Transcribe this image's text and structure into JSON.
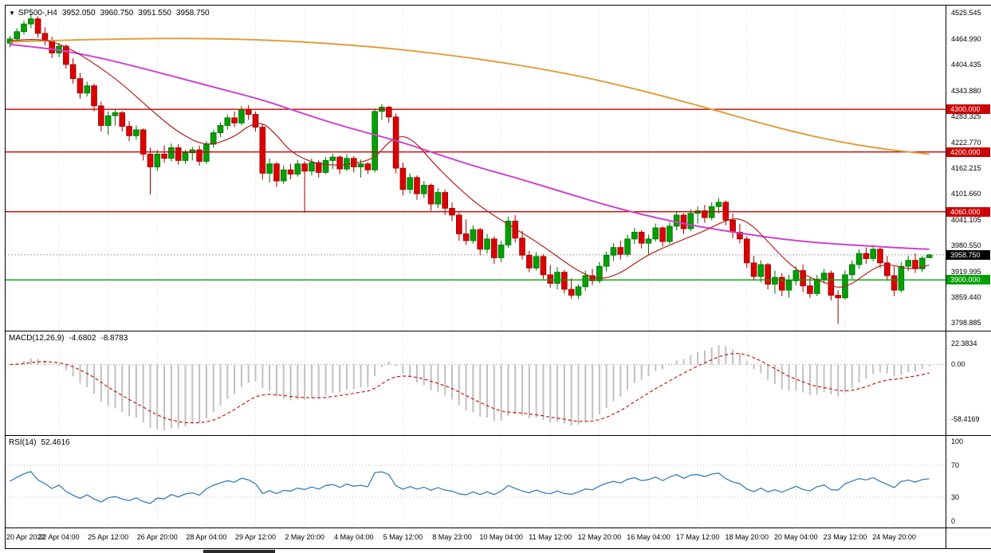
{
  "chart_header": {
    "dropdown_icon": "▼",
    "symbol": "SP500-,H4",
    "open": "3952.050",
    "high": "3960.750",
    "low": "3951.550",
    "close": "3958.750"
  },
  "chart_data": {
    "type": "candlestick",
    "title": "SP500-,H4",
    "symbol": "SP500-",
    "timeframe": "H4",
    "last_ohlc": {
      "open": 3952.05,
      "high": 3960.75,
      "low": 3951.55,
      "close": 3958.75
    },
    "price_axis": {
      "ylim": [
        3781,
        4545
      ],
      "tick_labels": [
        "4525.545",
        "4464.990",
        "4404.435",
        "4343.880",
        "4283.325",
        "4222.770",
        "4162.215",
        "4101.660",
        "4041.105",
        "3980.550",
        "3919.995",
        "3859.440",
        "3798.885"
      ]
    },
    "x_ticks": {
      "indices": [
        0,
        7,
        14,
        21,
        28,
        35,
        42,
        49,
        56,
        63,
        70,
        77,
        84,
        91,
        98,
        105,
        112,
        119,
        126
      ],
      "labels": [
        "20 Apr 2022",
        "22 Apr 04:00",
        "25 Apr 12:00",
        "26 Apr 20:00",
        "28 Apr 04:00",
        "29 Apr 12:00",
        "2 May 20:00",
        "4 May 04:00",
        "5 May 12:00",
        "8 May 23:00",
        "10 May 04:00",
        "11 May 12:00",
        "12 May 20:00",
        "16 May 04:00",
        "17 May 12:00",
        "18 May 20:00",
        "20 May 04:00",
        "23 May 12:00",
        "24 May 20:00"
      ]
    },
    "ohlc": [
      [
        4455,
        4472,
        4445,
        4465
      ],
      [
        4465,
        4490,
        4458,
        4482
      ],
      [
        4482,
        4508,
        4475,
        4500
      ],
      [
        4500,
        4525,
        4490,
        4512
      ],
      [
        4512,
        4518,
        4468,
        4478
      ],
      [
        4478,
        4492,
        4450,
        4460
      ],
      [
        4460,
        4470,
        4420,
        4432
      ],
      [
        4432,
        4455,
        4422,
        4448
      ],
      [
        4448,
        4452,
        4395,
        4405
      ],
      [
        4405,
        4420,
        4360,
        4372
      ],
      [
        4372,
        4385,
        4325,
        4338
      ],
      [
        4338,
        4365,
        4330,
        4355
      ],
      [
        4355,
        4360,
        4295,
        4308
      ],
      [
        4308,
        4318,
        4248,
        4262
      ],
      [
        4262,
        4295,
        4240,
        4285
      ],
      [
        4285,
        4300,
        4262,
        4292
      ],
      [
        4292,
        4296,
        4248,
        4260
      ],
      [
        4260,
        4272,
        4225,
        4238
      ],
      [
        4238,
        4262,
        4228,
        4252
      ],
      [
        4252,
        4255,
        4180,
        4195
      ],
      [
        4195,
        4210,
        4100,
        4165
      ],
      [
        4165,
        4205,
        4155,
        4195
      ],
      [
        4195,
        4215,
        4175,
        4185
      ],
      [
        4185,
        4220,
        4178,
        4210
      ],
      [
        4210,
        4218,
        4170,
        4180
      ],
      [
        4180,
        4205,
        4172,
        4198
      ],
      [
        4198,
        4212,
        4180,
        4205
      ],
      [
        4205,
        4215,
        4168,
        4178
      ],
      [
        4178,
        4225,
        4172,
        4218
      ],
      [
        4218,
        4252,
        4210,
        4245
      ],
      [
        4245,
        4270,
        4235,
        4262
      ],
      [
        4262,
        4288,
        4252,
        4280
      ],
      [
        4280,
        4295,
        4258,
        4268
      ],
      [
        4268,
        4308,
        4262,
        4300
      ],
      [
        4300,
        4310,
        4275,
        4288
      ],
      [
        4288,
        4295,
        4248,
        4258
      ],
      [
        4258,
        4265,
        4135,
        4150
      ],
      [
        4150,
        4185,
        4128,
        4172
      ],
      [
        4172,
        4176,
        4118,
        4132
      ],
      [
        4132,
        4168,
        4125,
        4158
      ],
      [
        4158,
        4172,
        4136,
        4148
      ],
      [
        4148,
        4182,
        4142,
        4172
      ],
      [
        4172,
        4178,
        4058,
        4155
      ],
      [
        4155,
        4185,
        4145,
        4175
      ],
      [
        4175,
        4180,
        4140,
        4152
      ],
      [
        4152,
        4188,
        4148,
        4180
      ],
      [
        4180,
        4196,
        4160,
        4188
      ],
      [
        4188,
        4192,
        4148,
        4160
      ],
      [
        4160,
        4195,
        4155,
        4185
      ],
      [
        4185,
        4190,
        4152,
        4165
      ],
      [
        4165,
        4182,
        4140,
        4172
      ],
      [
        4172,
        4176,
        4148,
        4158
      ],
      [
        4158,
        4302,
        4152,
        4295
      ],
      [
        4295,
        4312,
        4275,
        4305
      ],
      [
        4305,
        4308,
        4268,
        4282
      ],
      [
        4282,
        4290,
        4150,
        4162
      ],
      [
        4162,
        4175,
        4098,
        4112
      ],
      [
        4112,
        4150,
        4102,
        4140
      ],
      [
        4140,
        4145,
        4088,
        4102
      ],
      [
        4102,
        4132,
        4092,
        4122
      ],
      [
        4122,
        4126,
        4062,
        4078
      ],
      [
        4078,
        4115,
        4068,
        4105
      ],
      [
        4105,
        4112,
        4052,
        4068
      ],
      [
        4068,
        4082,
        4038,
        4052
      ],
      [
        4052,
        4058,
        3992,
        4008
      ],
      [
        4008,
        4042,
        3982,
        3992
      ],
      [
        3992,
        4028,
        3985,
        4018
      ],
      [
        4018,
        4022,
        3958,
        3972
      ],
      [
        3972,
        4008,
        3962,
        3996
      ],
      [
        3996,
        4002,
        3938,
        3952
      ],
      [
        3952,
        3992,
        3942,
        3982
      ],
      [
        3982,
        4048,
        3975,
        4038
      ],
      [
        4038,
        4052,
        3988,
        3998
      ],
      [
        3998,
        4015,
        3948,
        3958
      ],
      [
        3958,
        3968,
        3918,
        3928
      ],
      [
        3928,
        3965,
        3922,
        3955
      ],
      [
        3955,
        3960,
        3902,
        3912
      ],
      [
        3912,
        3935,
        3882,
        3892
      ],
      [
        3892,
        3930,
        3878,
        3918
      ],
      [
        3918,
        3924,
        3868,
        3878
      ],
      [
        3878,
        3904,
        3856,
        3864
      ],
      [
        3864,
        3890,
        3855,
        3884
      ],
      [
        3884,
        3922,
        3874,
        3910
      ],
      [
        3910,
        3926,
        3888,
        3898
      ],
      [
        3898,
        3942,
        3892,
        3932
      ],
      [
        3932,
        3966,
        3920,
        3958
      ],
      [
        3958,
        3986,
        3944,
        3976
      ],
      [
        3976,
        3992,
        3948,
        3960
      ],
      [
        3960,
        4006,
        3954,
        3996
      ],
      [
        3996,
        4022,
        3984,
        4012
      ],
      [
        4012,
        4016,
        3974,
        3986
      ],
      [
        3986,
        4006,
        3958,
        3996
      ],
      [
        3996,
        4032,
        3990,
        4022
      ],
      [
        4022,
        4026,
        3978,
        3990
      ],
      [
        3990,
        4036,
        3984,
        4026
      ],
      [
        4026,
        4062,
        4016,
        4052
      ],
      [
        4052,
        4056,
        4008,
        4020
      ],
      [
        4020,
        4066,
        4014,
        4056
      ],
      [
        4056,
        4072,
        4032,
        4062
      ],
      [
        4062,
        4076,
        4034,
        4046
      ],
      [
        4046,
        4082,
        4040,
        4072
      ],
      [
        4072,
        4092,
        4056,
        4082
      ],
      [
        4082,
        4086,
        4028,
        4040
      ],
      [
        4040,
        4056,
        3998,
        4012
      ],
      [
        4012,
        4032,
        3986,
        3996
      ],
      [
        3996,
        4002,
        3928,
        3940
      ],
      [
        3940,
        3956,
        3898,
        3908
      ],
      [
        3908,
        3946,
        3894,
        3936
      ],
      [
        3936,
        3940,
        3878,
        3890
      ],
      [
        3890,
        3922,
        3868,
        3906
      ],
      [
        3906,
        3916,
        3862,
        3876
      ],
      [
        3876,
        3912,
        3858,
        3898
      ],
      [
        3898,
        3932,
        3888,
        3922
      ],
      [
        3922,
        3936,
        3872,
        3886
      ],
      [
        3886,
        3906,
        3858,
        3868
      ],
      [
        3868,
        3912,
        3862,
        3902
      ],
      [
        3902,
        3926,
        3892,
        3916
      ],
      [
        3916,
        3922,
        3852,
        3864
      ],
      [
        3864,
        3876,
        3797,
        3858
      ],
      [
        3858,
        3922,
        3854,
        3912
      ],
      [
        3912,
        3946,
        3902,
        3936
      ],
      [
        3936,
        3972,
        3926,
        3962
      ],
      [
        3962,
        3976,
        3938,
        3950
      ],
      [
        3950,
        3982,
        3944,
        3972
      ],
      [
        3972,
        3976,
        3928,
        3940
      ],
      [
        3940,
        3956,
        3898,
        3910
      ],
      [
        3910,
        3932,
        3862,
        3876
      ],
      [
        3876,
        3942,
        3870,
        3932
      ],
      [
        3932,
        3956,
        3920,
        3946
      ],
      [
        3946,
        3962,
        3916,
        3926
      ],
      [
        3926,
        3956,
        3918,
        3951
      ],
      [
        3952.05,
        3960.75,
        3951.55,
        3958.75
      ]
    ],
    "levels": [
      {
        "price": 4300,
        "label": "4300.000",
        "color": "#CC0000"
      },
      {
        "price": 4200,
        "label": "4200.000",
        "color": "#CC0000"
      },
      {
        "price": 4060,
        "label": "4060.000",
        "color": "#CC0000"
      },
      {
        "price": 3900,
        "label": "3900.000",
        "color": "#00A000"
      }
    ],
    "current_price": {
      "price": 3958.75,
      "label": "3958.750",
      "box_color": "#000000",
      "line_color": "#A8A8A8"
    },
    "moving_averages": [
      {
        "name": "ma-slow-line",
        "color": "#DFA03C",
        "width": 2,
        "points": [
          [
            0,
            4458
          ],
          [
            10,
            4463
          ],
          [
            20,
            4466
          ],
          [
            28,
            4466
          ],
          [
            36,
            4463
          ],
          [
            44,
            4456
          ],
          [
            52,
            4446
          ],
          [
            58,
            4436
          ],
          [
            64,
            4424
          ],
          [
            70,
            4410
          ],
          [
            76,
            4394
          ],
          [
            82,
            4375
          ],
          [
            88,
            4352
          ],
          [
            94,
            4327
          ],
          [
            100,
            4300
          ],
          [
            106,
            4272
          ],
          [
            112,
            4246
          ],
          [
            118,
            4224
          ],
          [
            124,
            4208
          ],
          [
            128,
            4200
          ],
          [
            131,
            4195
          ]
        ]
      },
      {
        "name": "ma-medium-line",
        "color": "#CC44CC",
        "width": 2,
        "points": [
          [
            0,
            4452
          ],
          [
            6,
            4442
          ],
          [
            12,
            4424
          ],
          [
            18,
            4400
          ],
          [
            24,
            4374
          ],
          [
            30,
            4348
          ],
          [
            36,
            4322
          ],
          [
            40,
            4300
          ],
          [
            44,
            4278
          ],
          [
            48,
            4258
          ],
          [
            52,
            4240
          ],
          [
            56,
            4222
          ],
          [
            60,
            4200
          ],
          [
            64,
            4178
          ],
          [
            68,
            4158
          ],
          [
            72,
            4140
          ],
          [
            76,
            4120
          ],
          [
            80,
            4100
          ],
          [
            84,
            4080
          ],
          [
            88,
            4062
          ],
          [
            92,
            4046
          ],
          [
            96,
            4032
          ],
          [
            100,
            4020
          ],
          [
            104,
            4010
          ],
          [
            108,
            4000
          ],
          [
            112,
            3992
          ],
          [
            116,
            3986
          ],
          [
            120,
            3982
          ],
          [
            124,
            3978
          ],
          [
            128,
            3974
          ],
          [
            131,
            3972
          ]
        ]
      },
      {
        "name": "ma-fast-line",
        "color": "#B22222",
        "width": 1.2,
        "points": [
          [
            0,
            4460
          ],
          [
            4,
            4468
          ],
          [
            8,
            4448
          ],
          [
            12,
            4408
          ],
          [
            16,
            4360
          ],
          [
            20,
            4300
          ],
          [
            24,
            4245
          ],
          [
            28,
            4212
          ],
          [
            32,
            4235
          ],
          [
            34,
            4262
          ],
          [
            36,
            4270
          ],
          [
            38,
            4240
          ],
          [
            40,
            4200
          ],
          [
            43,
            4175
          ],
          [
            46,
            4168
          ],
          [
            49,
            4172
          ],
          [
            52,
            4185
          ],
          [
            54,
            4225
          ],
          [
            56,
            4240
          ],
          [
            58,
            4220
          ],
          [
            60,
            4180
          ],
          [
            63,
            4130
          ],
          [
            66,
            4085
          ],
          [
            69,
            4050
          ],
          [
            72,
            4020
          ],
          [
            75,
            3990
          ],
          [
            78,
            3955
          ],
          [
            81,
            3920
          ],
          [
            84,
            3900
          ],
          [
            87,
            3915
          ],
          [
            90,
            3950
          ],
          [
            93,
            3975
          ],
          [
            96,
            3995
          ],
          [
            99,
            4015
          ],
          [
            102,
            4040
          ],
          [
            104,
            4045
          ],
          [
            106,
            4025
          ],
          [
            108,
            3990
          ],
          [
            110,
            3955
          ],
          [
            112,
            3925
          ],
          [
            114,
            3905
          ],
          [
            116,
            3895
          ],
          [
            118,
            3880
          ],
          [
            120,
            3890
          ],
          [
            122,
            3915
          ],
          [
            124,
            3935
          ],
          [
            126,
            3935
          ],
          [
            128,
            3925
          ],
          [
            130,
            3930
          ],
          [
            131,
            3935
          ]
        ]
      }
    ],
    "indicators": [
      {
        "name": "MACD(12,26,9)",
        "type": "macd",
        "params": [
          12,
          26,
          9
        ],
        "current_main": -4.6802,
        "current_signal": -8.8783,
        "display_main": "-4.6802",
        "display_signal": "-8.8783",
        "ylim": [
          -75,
          36
        ],
        "ticks": [
          {
            "v": 22.3834,
            "label": "22.3834"
          },
          {
            "v": 0,
            "label": "0.00"
          },
          {
            "v": -58.4169,
            "label": "-58.4169"
          }
        ],
        "histogram_color": "#C0C0C0",
        "signal_color": "#CC0000"
      },
      {
        "name": "RSI(14)",
        "type": "rsi",
        "params": [
          14
        ],
        "current": 52.4616,
        "display": "52.4616",
        "ylim": [
          0,
          100
        ],
        "levels": [
          70,
          30
        ],
        "ticks": [
          {
            "v": 100,
            "label": "100"
          },
          {
            "v": 70,
            "label": "70"
          },
          {
            "v": 30,
            "label": "30"
          },
          {
            "v": 0,
            "label": "0"
          }
        ],
        "line_color": "#2A74B5"
      }
    ],
    "colors": {
      "up": "#00A000",
      "up_border": "#007000",
      "down": "#DC0000",
      "down_border": "#990000",
      "grid": "#D6D6D6",
      "background": "#FFFFFF"
    }
  }
}
